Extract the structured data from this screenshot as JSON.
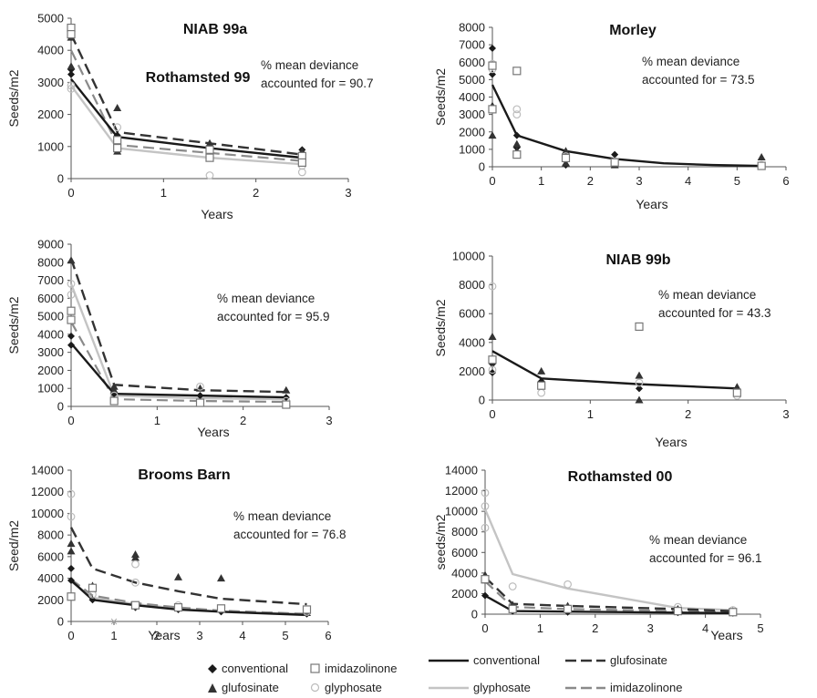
{
  "colors": {
    "conventional": "#1a1a1a",
    "glufosinate": "#333333",
    "glyphosate": "#c4c4c4",
    "imidazolinone": "#8a8a8a",
    "axis": "#555555"
  },
  "legend_left": {
    "conventional": "conventional",
    "imidazolinone": "imidazolinone",
    "glufosinate": "glufosinate",
    "glyphosate": "glyphosate"
  },
  "legend_right": {
    "conventional": "conventional",
    "glufosinate": "glufosinate",
    "glyphosate": "glyphosate",
    "imidazolinone": "imidazolinone"
  },
  "chart_data": [
    {
      "type": "scatter",
      "title": "NIAB 99a",
      "xlabel": "Years",
      "ylabel": "Seeds/m2",
      "xlim": [
        0,
        3
      ],
      "ylim": [
        0,
        5000
      ],
      "xticks": [
        0,
        1,
        2,
        3
      ],
      "yticks": [
        0,
        1000,
        2000,
        3000,
        4000,
        5000
      ],
      "annotation": [
        "% mean deviance",
        "accounted for = 90.7"
      ],
      "lines": [
        {
          "treatment": "conventional",
          "x": [
            0,
            0.5,
            1.5,
            2.5
          ],
          "y": [
            3100,
            1300,
            950,
            650
          ]
        },
        {
          "treatment": "glufosinate",
          "x": [
            0,
            0.5,
            1.5,
            2.5
          ],
          "y": [
            4500,
            1450,
            1100,
            750
          ]
        },
        {
          "treatment": "glyphosate",
          "x": [
            0,
            0.5,
            1.5,
            2.5
          ],
          "y": [
            2900,
            950,
            650,
            450
          ]
        },
        {
          "treatment": "imidazolinone",
          "x": [
            0,
            0.5,
            1.5,
            2.5
          ],
          "y": [
            4000,
            1050,
            800,
            550
          ]
        }
      ],
      "points": [
        {
          "treatment": "conventional",
          "x": [
            0,
            0,
            0.5,
            0.5,
            1.5,
            1.5,
            2.5,
            2.5
          ],
          "y": [
            3400,
            3250,
            1350,
            1250,
            1000,
            900,
            900,
            700
          ]
        },
        {
          "treatment": "glufosinate",
          "x": [
            0,
            0,
            0.5,
            0.5,
            1.5,
            1.5,
            2.5,
            2.5
          ],
          "y": [
            4400,
            3500,
            2200,
            850,
            1100,
            700,
            850,
            650
          ]
        },
        {
          "treatment": "glyphosate",
          "x": [
            0,
            0,
            0.5,
            0.5,
            1.5,
            1.5,
            2.5,
            2.5
          ],
          "y": [
            2900,
            2800,
            1600,
            1050,
            700,
            100,
            400,
            200
          ]
        },
        {
          "treatment": "imidazolinone",
          "x": [
            0,
            0,
            0.5,
            0.5,
            1.5,
            1.5,
            2.5,
            2.5
          ],
          "y": [
            4700,
            4500,
            1200,
            950,
            900,
            650,
            700,
            500
          ]
        }
      ]
    },
    {
      "type": "scatter",
      "title": "Morley",
      "xlabel": "Years",
      "ylabel": "Seeds/m2",
      "xlim": [
        0,
        6
      ],
      "ylim": [
        0,
        8000
      ],
      "xticks": [
        0,
        1,
        2,
        3,
        4,
        5,
        6
      ],
      "yticks": [
        0,
        1000,
        2000,
        3000,
        4000,
        5000,
        6000,
        7000,
        8000
      ],
      "annotation": [
        "% mean deviance",
        "accounted for = 73.5"
      ],
      "lines": [
        {
          "treatment": "conventional",
          "x": [
            0,
            0.5,
            1.5,
            2.5,
            3.5,
            4.5,
            5.5
          ],
          "y": [
            4700,
            1800,
            900,
            450,
            200,
            100,
            50
          ]
        }
      ],
      "points": [
        {
          "treatment": "conventional",
          "x": [
            0,
            0,
            0.5,
            0.5,
            1.5,
            1.5,
            2.5,
            2.5,
            5.5
          ],
          "y": [
            6800,
            5300,
            1800,
            1100,
            400,
            100,
            700,
            200,
            100
          ]
        },
        {
          "treatment": "glufosinate",
          "x": [
            0,
            0,
            0.5,
            0.5,
            1.5,
            1.5,
            2.5,
            2.5,
            5.5,
            5.5
          ],
          "y": [
            3500,
            1800,
            1300,
            900,
            900,
            200,
            400,
            100,
            550,
            100
          ]
        },
        {
          "treatment": "glyphosate",
          "x": [
            0,
            0,
            0.5,
            0.5,
            1.5,
            2.5,
            5.5
          ],
          "y": [
            5900,
            5600,
            3300,
            3000,
            600,
            300,
            100
          ]
        },
        {
          "treatment": "imidazolinone",
          "x": [
            0,
            0,
            0.5,
            0.5,
            1.5,
            2.5,
            5.5
          ],
          "y": [
            5800,
            3300,
            5500,
            700,
            500,
            250,
            50
          ]
        }
      ]
    },
    {
      "type": "scatter",
      "title": "Rothamsted 99",
      "xlabel": "Years",
      "ylabel": "Seeds/m2",
      "xlim": [
        0,
        3
      ],
      "ylim": [
        0,
        9000
      ],
      "xticks": [
        0,
        1,
        2,
        3
      ],
      "yticks": [
        0,
        1000,
        2000,
        3000,
        4000,
        5000,
        6000,
        7000,
        8000,
        9000
      ],
      "annotation": [
        "% mean deviance",
        "accounted for = 95.9"
      ],
      "lines": [
        {
          "treatment": "conventional",
          "x": [
            0,
            0.5,
            1.5,
            2.5
          ],
          "y": [
            3500,
            700,
            600,
            500
          ]
        },
        {
          "treatment": "glufosinate",
          "x": [
            0,
            0.5,
            1.5,
            2.5
          ],
          "y": [
            8200,
            1200,
            900,
            800
          ]
        },
        {
          "treatment": "glyphosate",
          "x": [
            0,
            0.5,
            1.5,
            2.5
          ],
          "y": [
            6800,
            600,
            450,
            400
          ]
        },
        {
          "treatment": "imidazolinone",
          "x": [
            0,
            0.5,
            1.5,
            2.5
          ],
          "y": [
            4700,
            400,
            300,
            250
          ]
        }
      ],
      "points": [
        {
          "treatment": "conventional",
          "x": [
            0,
            0,
            0.5,
            1.5,
            2.5
          ],
          "y": [
            3900,
            3400,
            700,
            600,
            500
          ]
        },
        {
          "treatment": "glufosinate",
          "x": [
            0,
            0.5,
            0.5,
            1.5,
            2.5
          ],
          "y": [
            8100,
            1100,
            900,
            1000,
            900
          ]
        },
        {
          "treatment": "glyphosate",
          "x": [
            0,
            0,
            0.5,
            1.5,
            2.5
          ],
          "y": [
            6800,
            6200,
            600,
            1100,
            300
          ]
        },
        {
          "treatment": "imidazolinone",
          "x": [
            0,
            0,
            0.5,
            1.5,
            2.5
          ],
          "y": [
            5300,
            4800,
            300,
            200,
            100
          ]
        }
      ]
    },
    {
      "type": "scatter",
      "title": "NIAB 99b",
      "xlabel": "Years",
      "ylabel": "Seeds/m2",
      "xlim": [
        0,
        3
      ],
      "ylim": [
        0,
        10000
      ],
      "xticks": [
        0,
        1,
        2,
        3
      ],
      "yticks": [
        0,
        2000,
        4000,
        6000,
        8000,
        10000
      ],
      "annotation": [
        "% mean deviance",
        "accounted for = 43.3"
      ],
      "lines": [
        {
          "treatment": "conventional",
          "x": [
            0,
            0.5,
            1.5,
            2.5
          ],
          "y": [
            3400,
            1500,
            1100,
            800
          ]
        }
      ],
      "points": [
        {
          "treatment": "conventional",
          "x": [
            0,
            0,
            0.5,
            1.5,
            2.5
          ],
          "y": [
            2500,
            1900,
            1300,
            800,
            700
          ]
        },
        {
          "treatment": "glufosinate",
          "x": [
            0,
            0.5,
            1.5,
            1.5,
            2.5
          ],
          "y": [
            4400,
            2000,
            1700,
            0,
            900
          ]
        },
        {
          "treatment": "glyphosate",
          "x": [
            0,
            0,
            0.5,
            1.5,
            2.5
          ],
          "y": [
            7900,
            2100,
            500,
            1200,
            300
          ]
        },
        {
          "treatment": "imidazolinone",
          "x": [
            0,
            0.5,
            1.5,
            2.5
          ],
          "y": [
            2800,
            1000,
            5100,
            500
          ]
        }
      ]
    },
    {
      "type": "scatter",
      "title": "Brooms Barn",
      "xlabel": "Years",
      "ylabel": "Seed/m2",
      "xlim": [
        0,
        6
      ],
      "ylim": [
        0,
        14000
      ],
      "xticks": [
        0,
        1,
        2,
        3,
        4,
        5,
        6
      ],
      "yticks": [
        0,
        2000,
        4000,
        6000,
        8000,
        10000,
        12000,
        14000
      ],
      "annotation": [
        "% mean deviance",
        "accounted for = 76.8"
      ],
      "lines": [
        {
          "treatment": "conventional",
          "x": [
            0,
            0.5,
            1.5,
            2.5,
            3.5,
            5.5
          ],
          "y": [
            3800,
            2000,
            1500,
            1100,
            900,
            600
          ]
        },
        {
          "treatment": "glufosinate",
          "x": [
            0,
            0.5,
            1.5,
            2.5,
            3.5,
            5.5
          ],
          "y": [
            8700,
            4900,
            3600,
            2800,
            2100,
            1600
          ]
        },
        {
          "treatment": "glyphosate",
          "x": [
            0,
            0.5,
            1.5,
            2.5,
            3.5,
            5.5
          ],
          "y": [
            3700,
            2200,
            1600,
            1200,
            900,
            700
          ]
        },
        {
          "treatment": "imidazolinone",
          "x": [
            0,
            0.5,
            1.5,
            2.5,
            3.5,
            5.5
          ],
          "y": [
            3900,
            2400,
            1700,
            1300,
            1000,
            700
          ]
        }
      ],
      "points": [
        {
          "treatment": "conventional",
          "x": [
            0,
            0,
            0.5,
            1.5,
            2.5,
            3.5,
            5.5
          ],
          "y": [
            4900,
            3800,
            2000,
            1300,
            1100,
            900,
            700
          ]
        },
        {
          "treatment": "glufosinate",
          "x": [
            0,
            0,
            0.5,
            1.5,
            1.5,
            2.5,
            3.5,
            5.5
          ],
          "y": [
            7200,
            6500,
            3300,
            6200,
            5900,
            4100,
            4000,
            800
          ]
        },
        {
          "treatment": "glyphosate",
          "x": [
            0,
            0,
            0.5,
            1.5,
            1.5,
            2.5,
            3.5,
            5.5
          ],
          "y": [
            11800,
            9700,
            2500,
            5300,
            3600,
            1500,
            1200,
            900
          ]
        },
        {
          "treatment": "imidazolinone",
          "x": [
            0,
            0.5,
            1.5,
            2.5,
            3.5,
            5.5
          ],
          "y": [
            2300,
            3100,
            1500,
            1300,
            1200,
            1100
          ]
        }
      ]
    },
    {
      "type": "scatter",
      "title": "Rothamsted 00",
      "xlabel": "Years",
      "ylabel": "seeds/m2",
      "xlim": [
        0,
        5
      ],
      "ylim": [
        0,
        14000
      ],
      "xticks": [
        0,
        1,
        2,
        3,
        4,
        5
      ],
      "yticks": [
        0,
        2000,
        4000,
        6000,
        8000,
        10000,
        12000,
        14000
      ],
      "annotation": [
        "% mean deviance",
        "accounted for = 96.1"
      ],
      "lines": [
        {
          "treatment": "conventional",
          "x": [
            0,
            0.5,
            1.5,
            3.5,
            4.5
          ],
          "y": [
            1800,
            300,
            250,
            150,
            100
          ]
        },
        {
          "treatment": "glufosinate",
          "x": [
            0,
            0.5,
            1.5,
            3.5,
            4.5
          ],
          "y": [
            3600,
            1000,
            800,
            500,
            300
          ]
        },
        {
          "treatment": "glyphosate",
          "x": [
            0,
            0.5,
            1.5,
            3.5,
            4.5
          ],
          "y": [
            10200,
            3900,
            2500,
            600,
            400
          ]
        },
        {
          "treatment": "imidazolinone",
          "x": [
            0,
            0.5,
            1.5,
            3.5,
            4.5
          ],
          "y": [
            3200,
            700,
            500,
            300,
            200
          ]
        }
      ],
      "points": [
        {
          "treatment": "conventional",
          "x": [
            0,
            0.5,
            1.5,
            3.5,
            4.5
          ],
          "y": [
            1800,
            300,
            200,
            150,
            100
          ]
        },
        {
          "treatment": "glufosinate",
          "x": [
            0,
            0,
            0.5,
            1.5,
            3.5,
            4.5
          ],
          "y": [
            3800,
            3300,
            900,
            800,
            500,
            300
          ]
        },
        {
          "treatment": "glyphosate",
          "x": [
            0,
            0,
            0,
            0.5,
            1.5,
            3.5,
            4.5
          ],
          "y": [
            11800,
            10500,
            8400,
            2700,
            2900,
            700,
            400
          ]
        },
        {
          "treatment": "imidazolinone",
          "x": [
            0,
            0.5,
            1.5,
            3.5,
            4.5
          ],
          "y": [
            3400,
            500,
            500,
            300,
            200
          ]
        }
      ]
    }
  ]
}
